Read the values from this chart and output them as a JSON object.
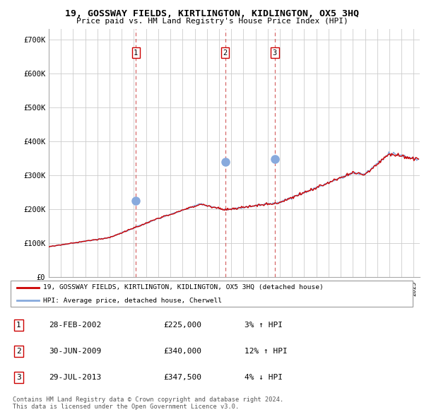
{
  "title": "19, GOSSWAY FIELDS, KIRTLINGTON, KIDLINGTON, OX5 3HQ",
  "subtitle": "Price paid vs. HM Land Registry's House Price Index (HPI)",
  "ylabel_ticks": [
    "£0",
    "£100K",
    "£200K",
    "£300K",
    "£400K",
    "£500K",
    "£600K",
    "£700K"
  ],
  "ytick_values": [
    0,
    100000,
    200000,
    300000,
    400000,
    500000,
    600000,
    700000
  ],
  "ylim": [
    0,
    730000
  ],
  "xlim_start": 1995.0,
  "xlim_end": 2025.5,
  "sale_dates": [
    2002.16,
    2009.5,
    2013.58
  ],
  "sale_prices": [
    225000,
    340000,
    347500
  ],
  "sale_labels": [
    "1",
    "2",
    "3"
  ],
  "legend_line1": "19, GOSSWAY FIELDS, KIRTLINGTON, KIDLINGTON, OX5 3HQ (detached house)",
  "legend_line2": "HPI: Average price, detached house, Cherwell",
  "table_rows": [
    [
      "1",
      "28-FEB-2002",
      "£225,000",
      "3% ↑ HPI"
    ],
    [
      "2",
      "30-JUN-2009",
      "£340,000",
      "12% ↑ HPI"
    ],
    [
      "3",
      "29-JUL-2013",
      "£347,500",
      "4% ↓ HPI"
    ]
  ],
  "footnote1": "Contains HM Land Registry data © Crown copyright and database right 2024.",
  "footnote2": "This data is licensed under the Open Government Licence v3.0.",
  "red_color": "#cc0000",
  "blue_color": "#88aadd",
  "background_color": "#ffffff",
  "grid_color": "#cccccc"
}
